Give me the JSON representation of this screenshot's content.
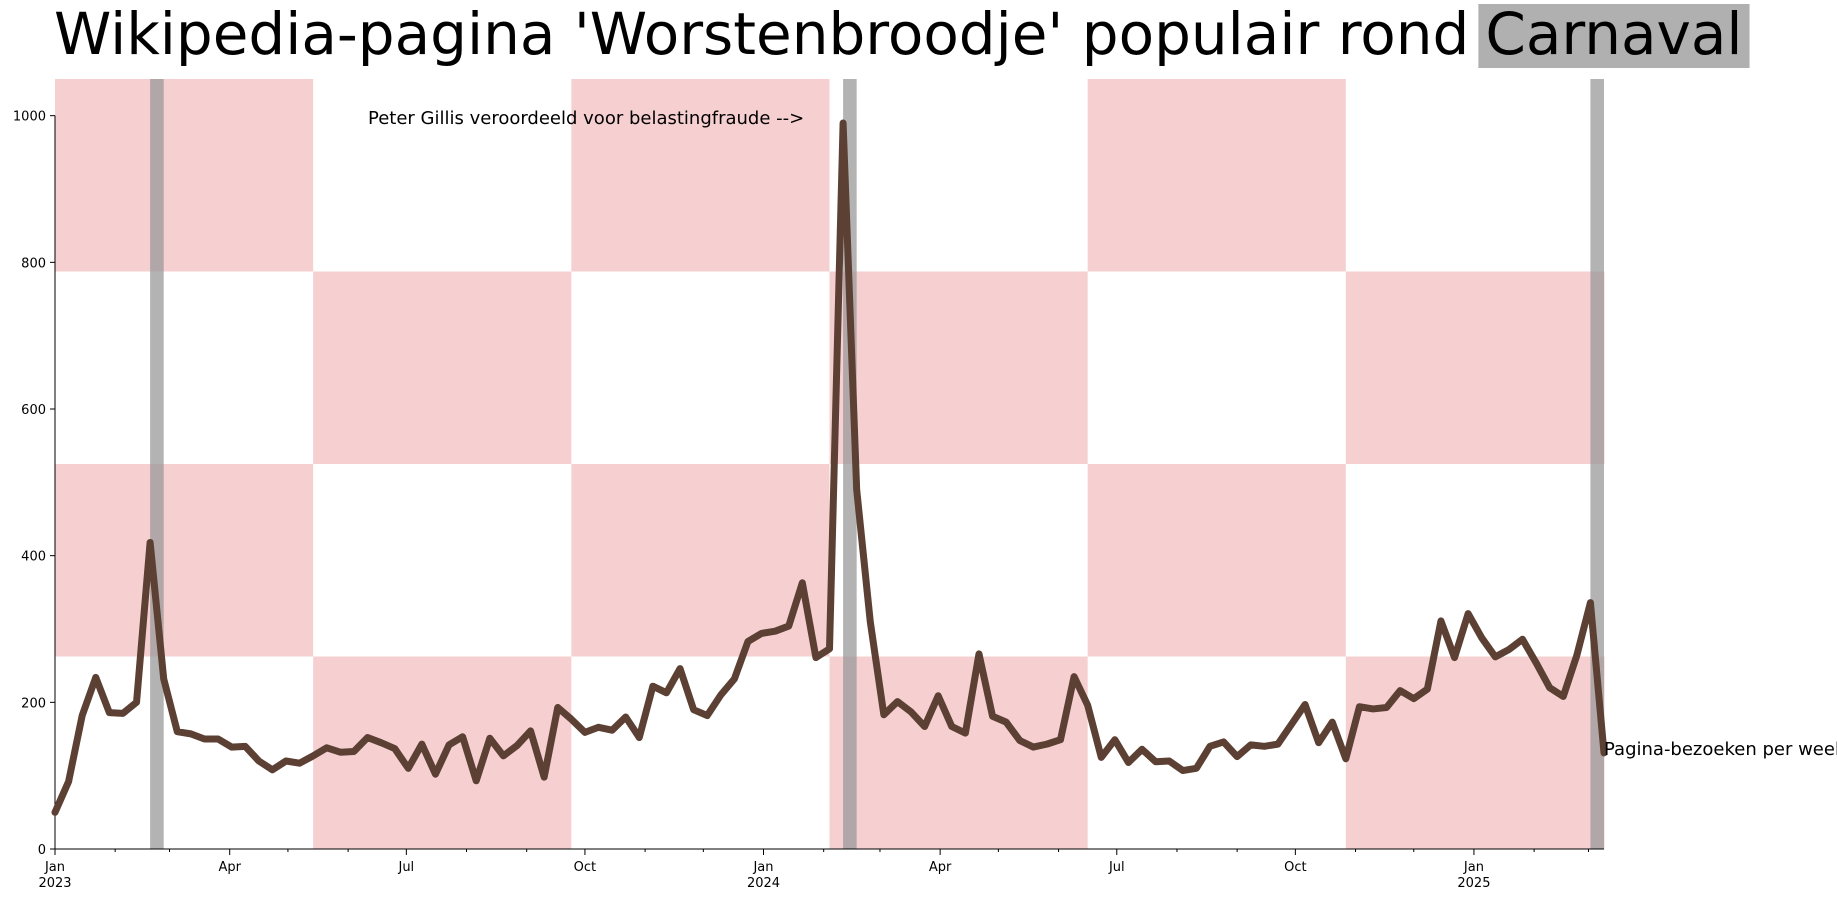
{
  "chart_data": {
    "type": "line",
    "title": "Wikipedia-pagina 'Worstenbroodje' populair rond",
    "title_highlight": "Carnaval",
    "xlabel": "",
    "ylabel": "",
    "ylim": [
      0,
      1050
    ],
    "y_ticks": [
      0,
      200,
      400,
      600,
      800,
      1000
    ],
    "x_range": [
      "2023-01-01",
      "2025-03-09"
    ],
    "grid": false,
    "x_major_ticks": [
      {
        "date": "2023-01-01",
        "label": "Jan",
        "year": "2023"
      },
      {
        "date": "2023-04-01",
        "label": "Apr",
        "year": ""
      },
      {
        "date": "2023-07-01",
        "label": "Jul",
        "year": ""
      },
      {
        "date": "2023-10-01",
        "label": "Oct",
        "year": ""
      },
      {
        "date": "2024-01-01",
        "label": "Jan",
        "year": "2024"
      },
      {
        "date": "2024-04-01",
        "label": "Apr",
        "year": ""
      },
      {
        "date": "2024-07-01",
        "label": "Jul",
        "year": ""
      },
      {
        "date": "2024-10-01",
        "label": "Oct",
        "year": ""
      },
      {
        "date": "2025-01-01",
        "label": "Jan",
        "year": "2025"
      }
    ],
    "x_minor_ticks": [
      "2023-02-01",
      "2023-03-01",
      "2023-05-01",
      "2023-06-01",
      "2023-08-01",
      "2023-09-01",
      "2023-11-01",
      "2023-12-01",
      "2024-02-01",
      "2024-03-01",
      "2024-05-01",
      "2024-06-01",
      "2024-08-01",
      "2024-09-01",
      "2024-11-01",
      "2024-12-01",
      "2025-02-01",
      "2025-03-01"
    ],
    "carnival_periods": [
      {
        "start": "2023-02-19",
        "end": "2023-02-26"
      },
      {
        "start": "2024-02-11",
        "end": "2024-02-18"
      },
      {
        "start": "2025-03-02",
        "end": "2025-03-09"
      }
    ],
    "annotation": "Peter Gillis veroordeeld voor belastingfraude -->",
    "background_colors": {
      "pink": "#f6cfd1",
      "white": "#ffffff"
    },
    "colors": {
      "line": "#5c4033",
      "carnival_band": "#999999",
      "title_highlight_bg": "#b0b0b0"
    },
    "series": [
      {
        "name": "Pagina-bezoeken per week",
        "x": [
          "2023-01-01",
          "2023-01-08",
          "2023-01-15",
          "2023-01-22",
          "2023-01-29",
          "2023-02-05",
          "2023-02-12",
          "2023-02-19",
          "2023-02-26",
          "2023-03-05",
          "2023-03-12",
          "2023-03-19",
          "2023-03-26",
          "2023-04-02",
          "2023-04-09",
          "2023-04-16",
          "2023-04-23",
          "2023-04-30",
          "2023-05-07",
          "2023-05-14",
          "2023-05-21",
          "2023-05-28",
          "2023-06-04",
          "2023-06-11",
          "2023-06-18",
          "2023-06-25",
          "2023-07-02",
          "2023-07-09",
          "2023-07-16",
          "2023-07-23",
          "2023-07-30",
          "2023-08-06",
          "2023-08-13",
          "2023-08-20",
          "2023-08-27",
          "2023-09-03",
          "2023-09-10",
          "2023-09-17",
          "2023-09-24",
          "2023-10-01",
          "2023-10-08",
          "2023-10-15",
          "2023-10-22",
          "2023-10-29",
          "2023-11-05",
          "2023-11-12",
          "2023-11-19",
          "2023-11-26",
          "2023-12-03",
          "2023-12-10",
          "2023-12-17",
          "2023-12-24",
          "2023-12-31",
          "2024-01-07",
          "2024-01-14",
          "2024-01-21",
          "2024-01-28",
          "2024-02-04",
          "2024-02-11",
          "2024-02-18",
          "2024-02-25",
          "2024-03-03",
          "2024-03-10",
          "2024-03-17",
          "2024-03-24",
          "2024-03-31",
          "2024-04-07",
          "2024-04-14",
          "2024-04-21",
          "2024-04-28",
          "2024-05-05",
          "2024-05-12",
          "2024-05-19",
          "2024-05-26",
          "2024-06-02",
          "2024-06-09",
          "2024-06-16",
          "2024-06-23",
          "2024-06-30",
          "2024-07-07",
          "2024-07-14",
          "2024-07-21",
          "2024-07-28",
          "2024-08-04",
          "2024-08-11",
          "2024-08-18",
          "2024-08-25",
          "2024-09-01",
          "2024-09-08",
          "2024-09-15",
          "2024-09-22",
          "2024-09-29",
          "2024-10-06",
          "2024-10-13",
          "2024-10-20",
          "2024-10-27",
          "2024-11-03",
          "2024-11-10",
          "2024-11-17",
          "2024-11-24",
          "2024-12-01",
          "2024-12-08",
          "2024-12-15",
          "2024-12-22",
          "2024-12-29",
          "2025-01-05",
          "2025-01-12",
          "2025-01-19",
          "2025-01-26",
          "2025-02-02",
          "2025-02-09",
          "2025-02-16",
          "2025-02-23",
          "2025-03-02",
          "2025-03-09"
        ],
        "values": [
          50,
          92,
          182,
          234,
          186,
          185,
          200,
          418,
          232,
          160,
          157,
          150,
          150,
          139,
          140,
          120,
          108,
          120,
          117,
          127,
          138,
          132,
          133,
          152,
          145,
          137,
          110,
          143,
          102,
          142,
          153,
          93,
          151,
          127,
          141,
          161,
          98,
          193,
          177,
          159,
          166,
          162,
          180,
          152,
          222,
          213,
          246,
          190,
          182,
          210,
          232,
          283,
          294,
          297,
          304,
          363,
          261,
          273,
          990,
          490,
          310,
          183,
          201,
          187,
          167,
          209,
          167,
          158,
          266,
          181,
          173,
          148,
          139,
          143,
          149,
          235,
          196,
          125,
          149,
          118,
          136,
          119,
          120,
          107,
          110,
          140,
          146,
          126,
          142,
          140,
          143,
          170,
          197,
          145,
          173,
          123,
          194,
          191,
          193,
          216,
          205,
          218,
          311,
          261,
          321,
          288,
          262,
          272,
          286,
          254,
          220,
          208,
          264,
          336,
          131
        ]
      }
    ]
  }
}
